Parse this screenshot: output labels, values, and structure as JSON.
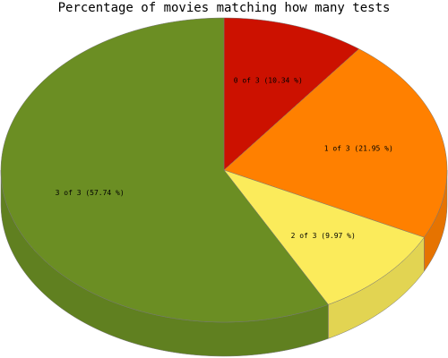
{
  "chart_data": {
    "type": "pie",
    "title": "Percentage of movies matching how many tests",
    "values": [
      10.34,
      21.95,
      9.97,
      57.74
    ],
    "value_labels": [
      "0 of 3 (10.34 %)",
      "1 of 3 (21.95 %)",
      "2 of 3 (9.97 %)",
      "3 of 3 (57.74 %)"
    ],
    "colors": [
      "#cc1100",
      "#ff8000",
      "#fbeb5b",
      "#6b8e23"
    ]
  }
}
